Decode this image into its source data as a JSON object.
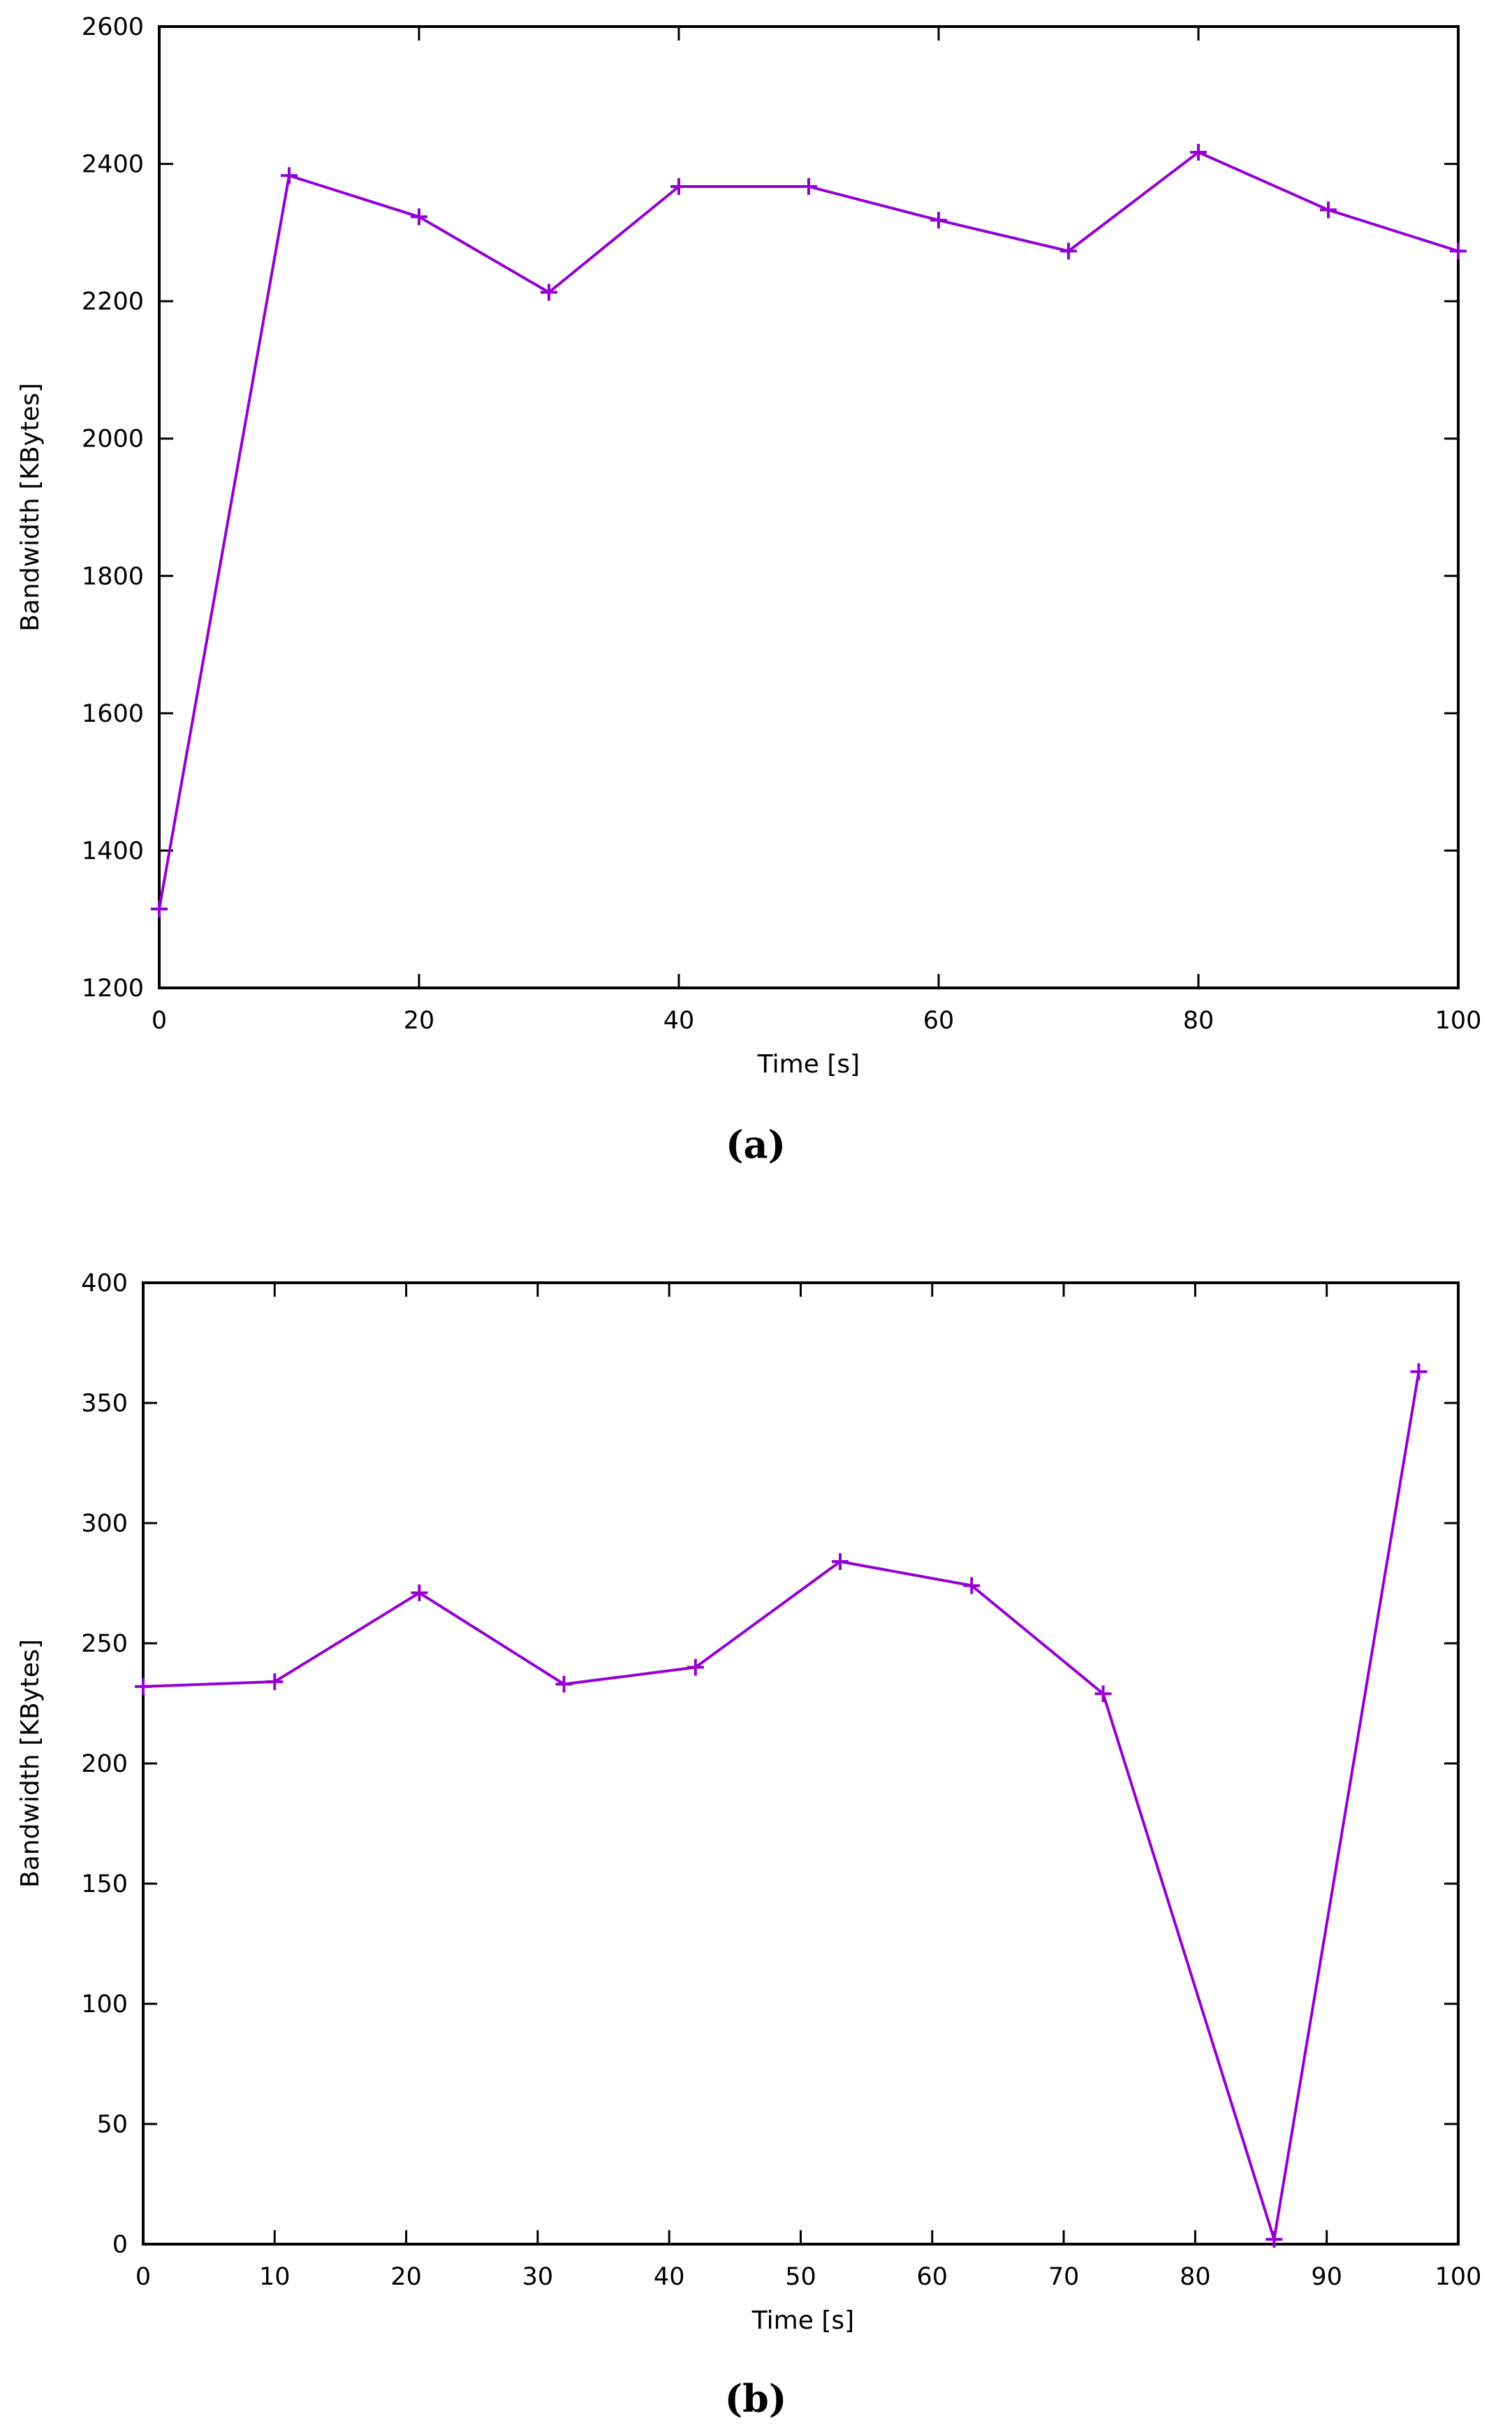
{
  "chart_data": [
    {
      "type": "line",
      "caption": "(a)",
      "xlabel": "Time [s]",
      "ylabel": "Bandwidth [KBytes]",
      "xlim": [
        0,
        100
      ],
      "ylim": [
        1200,
        2600
      ],
      "xticks": [
        0,
        20,
        40,
        60,
        80,
        100
      ],
      "yticks": [
        1200,
        1400,
        1600,
        1800,
        2000,
        2200,
        2400,
        2600
      ],
      "grid": false,
      "marker": "plus",
      "color": "#9400d3",
      "series": [
        {
          "x": [
            0,
            10,
            20,
            30,
            40,
            50,
            60,
            70,
            80,
            90,
            100
          ],
          "y": [
            1315,
            2383,
            2323,
            2213,
            2367,
            2367,
            2318,
            2273,
            2417,
            2333,
            2273
          ]
        }
      ]
    },
    {
      "type": "line",
      "caption": "(b)",
      "xlabel": "Time [s]",
      "ylabel": "Bandwidth [KBytes]",
      "xlim": [
        0,
        100
      ],
      "ylim": [
        0,
        400
      ],
      "xticks": [
        0,
        10,
        20,
        30,
        40,
        50,
        60,
        70,
        80,
        90,
        100
      ],
      "yticks": [
        0,
        50,
        100,
        150,
        200,
        250,
        300,
        350,
        400
      ],
      "grid": false,
      "marker": "plus",
      "color": "#9400d3",
      "series": [
        {
          "x": [
            0,
            10,
            21,
            32,
            42,
            53,
            63,
            73,
            86,
            97
          ],
          "y": [
            232,
            234,
            271,
            233,
            240,
            284,
            274,
            229,
            2,
            363
          ]
        }
      ]
    }
  ]
}
